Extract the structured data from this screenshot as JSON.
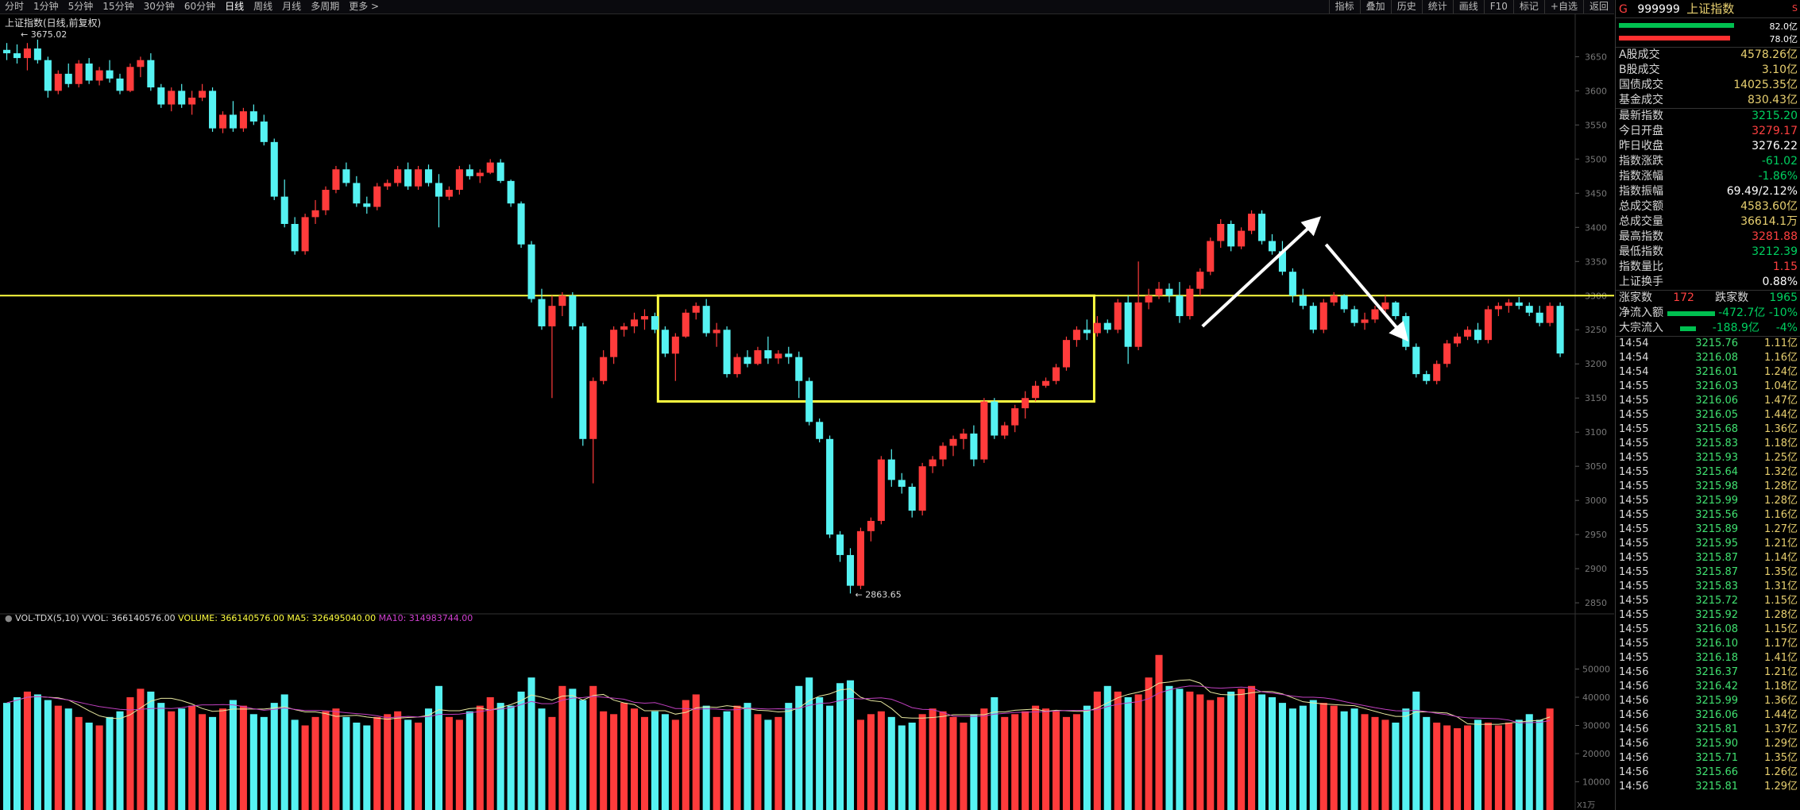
{
  "toolbar": {
    "periods": [
      "分时",
      "1分钟",
      "5分钟",
      "15分钟",
      "30分钟",
      "60分钟",
      "日线",
      "周线",
      "月线",
      "多周期",
      "更多 >"
    ],
    "active": "日线",
    "right_buttons": [
      "指标",
      "叠加",
      "历史",
      "统计",
      "画线",
      "F10",
      "标记",
      "+自选",
      "返回"
    ]
  },
  "chart": {
    "title": "上证指数(日线,前复权)",
    "max_label": "3675.02",
    "min_label": "2863.65",
    "y_ticks": [
      3650,
      3600,
      3550,
      3500,
      3450,
      3400,
      3350,
      3300,
      3250,
      3200,
      3150,
      3100,
      3050,
      3000,
      2950,
      2900,
      2850
    ],
    "vol_ticks": [
      "50000",
      "40000",
      "30000",
      "20000",
      "10000"
    ],
    "vol_unit": "X1万",
    "resistance_level": 3300,
    "box": {
      "from_bar": 64,
      "to_bar": 105,
      "upper": 3300,
      "lower": 3145
    },
    "colors": {
      "up": "#ff3b3b",
      "down": "#55f2f2",
      "ma5": "#e8e8a0",
      "ma10": "#c040c0",
      "box": "#ffff40"
    },
    "candles": [
      [
        3660,
        3670,
        3645,
        3655
      ],
      [
        3655,
        3668,
        3640,
        3648
      ],
      [
        3648,
        3670,
        3630,
        3662
      ],
      [
        3662,
        3675.02,
        3640,
        3645
      ],
      [
        3645,
        3650,
        3590,
        3600
      ],
      [
        3600,
        3630,
        3595,
        3625
      ],
      [
        3625,
        3640,
        3605,
        3610
      ],
      [
        3610,
        3645,
        3605,
        3640
      ],
      [
        3640,
        3648,
        3610,
        3615
      ],
      [
        3615,
        3635,
        3608,
        3630
      ],
      [
        3630,
        3645,
        3612,
        3618
      ],
      [
        3618,
        3625,
        3595,
        3600
      ],
      [
        3600,
        3640,
        3598,
        3635
      ],
      [
        3635,
        3650,
        3620,
        3645
      ],
      [
        3645,
        3655,
        3600,
        3605
      ],
      [
        3605,
        3610,
        3575,
        3580
      ],
      [
        3580,
        3605,
        3570,
        3600
      ],
      [
        3600,
        3610,
        3575,
        3580
      ],
      [
        3580,
        3600,
        3565,
        3590
      ],
      [
        3590,
        3610,
        3585,
        3600
      ],
      [
        3600,
        3605,
        3540,
        3545
      ],
      [
        3545,
        3570,
        3538,
        3565
      ],
      [
        3565,
        3585,
        3540,
        3545
      ],
      [
        3545,
        3575,
        3540,
        3570
      ],
      [
        3570,
        3580,
        3550,
        3555
      ],
      [
        3555,
        3565,
        3520,
        3525
      ],
      [
        3525,
        3530,
        3440,
        3445
      ],
      [
        3445,
        3470,
        3400,
        3405
      ],
      [
        3405,
        3415,
        3360,
        3365
      ],
      [
        3365,
        3420,
        3360,
        3415
      ],
      [
        3415,
        3440,
        3405,
        3425
      ],
      [
        3425,
        3460,
        3418,
        3455
      ],
      [
        3455,
        3490,
        3450,
        3485
      ],
      [
        3485,
        3495,
        3460,
        3465
      ],
      [
        3465,
        3475,
        3430,
        3435
      ],
      [
        3435,
        3445,
        3420,
        3430
      ],
      [
        3430,
        3465,
        3425,
        3460
      ],
      [
        3460,
        3470,
        3455,
        3465
      ],
      [
        3465,
        3490,
        3460,
        3485
      ],
      [
        3485,
        3495,
        3455,
        3460
      ],
      [
        3460,
        3490,
        3455,
        3485
      ],
      [
        3485,
        3492,
        3460,
        3465
      ],
      [
        3465,
        3478,
        3400,
        3445
      ],
      [
        3445,
        3460,
        3440,
        3455
      ],
      [
        3455,
        3490,
        3448,
        3485
      ],
      [
        3485,
        3492,
        3470,
        3475
      ],
      [
        3475,
        3485,
        3465,
        3480
      ],
      [
        3480,
        3500,
        3478,
        3495
      ],
      [
        3495,
        3500,
        3465,
        3468
      ],
      [
        3468,
        3470,
        3430,
        3435
      ],
      [
        3435,
        3438,
        3370,
        3375
      ],
      [
        3375,
        3380,
        3290,
        3295
      ],
      [
        3295,
        3310,
        3250,
        3255
      ],
      [
        3255,
        3300,
        3150,
        3285
      ],
      [
        3285,
        3305,
        3270,
        3300
      ],
      [
        3300,
        3305,
        3250,
        3255
      ],
      [
        3255,
        3260,
        3080,
        3090
      ],
      [
        3090,
        3180,
        3025,
        3175
      ],
      [
        3175,
        3220,
        3170,
        3210
      ],
      [
        3210,
        3255,
        3200,
        3250
      ],
      [
        3250,
        3260,
        3240,
        3255
      ],
      [
        3255,
        3275,
        3245,
        3265
      ],
      [
        3265,
        3280,
        3250,
        3270
      ],
      [
        3270,
        3275,
        3245,
        3250
      ],
      [
        3250,
        3255,
        3210,
        3215
      ],
      [
        3215,
        3245,
        3175,
        3240
      ],
      [
        3240,
        3280,
        3238,
        3275
      ],
      [
        3275,
        3290,
        3265,
        3285
      ],
      [
        3285,
        3295,
        3240,
        3245
      ],
      [
        3245,
        3260,
        3225,
        3250
      ],
      [
        3250,
        3255,
        3180,
        3185
      ],
      [
        3185,
        3215,
        3180,
        3210
      ],
      [
        3210,
        3220,
        3195,
        3200
      ],
      [
        3200,
        3225,
        3198,
        3220
      ],
      [
        3220,
        3240,
        3200,
        3208
      ],
      [
        3208,
        3220,
        3200,
        3215
      ],
      [
        3215,
        3225,
        3200,
        3210
      ],
      [
        3210,
        3218,
        3150,
        3175
      ],
      [
        3175,
        3180,
        3110,
        3115
      ],
      [
        3115,
        3120,
        3085,
        3090
      ],
      [
        3090,
        3095,
        2945,
        2950
      ],
      [
        2950,
        2955,
        2910,
        2920
      ],
      [
        2920,
        2930,
        2863.65,
        2875
      ],
      [
        2875,
        2960,
        2870,
        2955
      ],
      [
        2955,
        2975,
        2940,
        2970
      ],
      [
        2970,
        3065,
        2965,
        3060
      ],
      [
        3060,
        3075,
        3020,
        3030
      ],
      [
        3030,
        3040,
        3010,
        3020
      ],
      [
        3020,
        3025,
        2975,
        2985
      ],
      [
        2985,
        3055,
        2978,
        3050
      ],
      [
        3050,
        3065,
        3040,
        3060
      ],
      [
        3060,
        3085,
        3050,
        3080
      ],
      [
        3080,
        3095,
        3065,
        3090
      ],
      [
        3090,
        3105,
        3075,
        3098
      ],
      [
        3098,
        3110,
        3050,
        3060
      ],
      [
        3060,
        3150,
        3055,
        3145
      ],
      [
        3145,
        3150,
        3090,
        3095
      ],
      [
        3095,
        3115,
        3090,
        3110
      ],
      [
        3110,
        3140,
        3100,
        3135
      ],
      [
        3135,
        3160,
        3120,
        3150
      ],
      [
        3150,
        3175,
        3145,
        3168
      ],
      [
        3168,
        3180,
        3165,
        3175
      ],
      [
        3175,
        3200,
        3170,
        3195
      ],
      [
        3195,
        3240,
        3190,
        3235
      ],
      [
        3235,
        3255,
        3225,
        3250
      ],
      [
        3250,
        3265,
        3235,
        3245
      ],
      [
        3245,
        3270,
        3240,
        3260
      ],
      [
        3260,
        3265,
        3245,
        3250
      ],
      [
        3250,
        3295,
        3245,
        3290
      ],
      [
        3290,
        3300,
        3200,
        3225
      ],
      [
        3225,
        3350,
        3220,
        3290
      ],
      [
        3290,
        3310,
        3280,
        3300
      ],
      [
        3300,
        3320,
        3295,
        3310
      ],
      [
        3310,
        3318,
        3290,
        3300
      ],
      [
        3300,
        3320,
        3260,
        3270
      ],
      [
        3270,
        3315,
        3265,
        3310
      ],
      [
        3310,
        3340,
        3300,
        3335
      ],
      [
        3335,
        3385,
        3330,
        3380
      ],
      [
        3380,
        3412,
        3370,
        3405
      ],
      [
        3405,
        3410,
        3365,
        3372
      ],
      [
        3372,
        3400,
        3368,
        3395
      ],
      [
        3395,
        3425,
        3390,
        3420
      ],
      [
        3420,
        3425,
        3375,
        3380
      ],
      [
        3380,
        3390,
        3360,
        3365
      ],
      [
        3365,
        3380,
        3330,
        3335
      ],
      [
        3335,
        3340,
        3290,
        3300
      ],
      [
        3300,
        3310,
        3280,
        3285
      ],
      [
        3285,
        3290,
        3245,
        3250
      ],
      [
        3250,
        3295,
        3245,
        3290
      ],
      [
        3290,
        3305,
        3285,
        3300
      ],
      [
        3300,
        3302,
        3275,
        3280
      ],
      [
        3280,
        3285,
        3255,
        3260
      ],
      [
        3260,
        3275,
        3250,
        3265
      ],
      [
        3265,
        3285,
        3260,
        3280
      ],
      [
        3280,
        3300,
        3275,
        3290
      ],
      [
        3290,
        3292,
        3265,
        3270
      ],
      [
        3270,
        3275,
        3220,
        3225
      ],
      [
        3225,
        3230,
        3180,
        3185
      ],
      [
        3185,
        3190,
        3170,
        3175
      ],
      [
        3175,
        3205,
        3170,
        3200
      ],
      [
        3200,
        3235,
        3195,
        3230
      ],
      [
        3230,
        3245,
        3225,
        3240
      ],
      [
        3240,
        3255,
        3235,
        3250
      ],
      [
        3250,
        3260,
        3230,
        3235
      ],
      [
        3235,
        3285,
        3230,
        3280
      ],
      [
        3280,
        3290,
        3270,
        3285
      ],
      [
        3285,
        3295,
        3275,
        3290
      ],
      [
        3290,
        3298,
        3280,
        3285
      ],
      [
        3285,
        3290,
        3270,
        3275
      ],
      [
        3275,
        3285,
        3255,
        3260
      ],
      [
        3260,
        3290,
        3255,
        3285
      ],
      [
        3285,
        3290,
        3210,
        3215.2
      ]
    ],
    "volumes": [
      38,
      40,
      42,
      41,
      39,
      37,
      36,
      33,
      31,
      30,
      33,
      35,
      40,
      43,
      42,
      38,
      35,
      36,
      37,
      34,
      33,
      36,
      39,
      37,
      34,
      33,
      38,
      41,
      32,
      30,
      33,
      35,
      36,
      33,
      31,
      30,
      33,
      34,
      35,
      32,
      31,
      36,
      44,
      33,
      32,
      35,
      37,
      40,
      38,
      37,
      42,
      47,
      36,
      33,
      44,
      43,
      39,
      44,
      35,
      34,
      38,
      36,
      33,
      35,
      34,
      32,
      39,
      41,
      37,
      33,
      35,
      37,
      38,
      34,
      32,
      33,
      38,
      44,
      47,
      40,
      37,
      45,
      46,
      32,
      34,
      35,
      33,
      30,
      31,
      34,
      36,
      35,
      33,
      31,
      34,
      36,
      40,
      33,
      34,
      35,
      37,
      36,
      35,
      33,
      34,
      37,
      42,
      44,
      42,
      40,
      41,
      47,
      55,
      44,
      43,
      42,
      41,
      39,
      40,
      42,
      43,
      44,
      41,
      40,
      38,
      36,
      37,
      39,
      38,
      37,
      35,
      36,
      34,
      33,
      32,
      31,
      36,
      42,
      33,
      31,
      30,
      29,
      30,
      32,
      31,
      30,
      31,
      32,
      34,
      32,
      36
    ]
  },
  "indicator": {
    "name": "VOL-TDX(5,10)",
    "vvol": "VVOL: 366140576.00",
    "volume": "VOLUME: 366140576.00",
    "ma5": "MA5: 326495040.00",
    "ma10": "MA10: 314983744.00"
  },
  "panel": {
    "code": "999999",
    "name": "上证指数",
    "g": "G",
    "s": "S",
    "bar1": "82.0亿",
    "bar2": "78.0亿",
    "summary": [
      {
        "label": "A股成交",
        "value": "4578.26亿",
        "cls": "yel"
      },
      {
        "label": "B股成交",
        "value": "3.10亿",
        "cls": "yel"
      },
      {
        "label": "国债成交",
        "value": "14025.35亿",
        "cls": "yel"
      },
      {
        "label": "基金成交",
        "value": "830.43亿",
        "cls": "yel"
      }
    ],
    "quotes": [
      {
        "label": "最新指数",
        "value": "3215.20",
        "cls": "green"
      },
      {
        "label": "今日开盘",
        "value": "3279.17",
        "cls": "red"
      },
      {
        "label": "昨日收盘",
        "value": "3276.22",
        "cls": "white"
      },
      {
        "label": "指数涨跌",
        "value": "-61.02",
        "cls": "green"
      },
      {
        "label": "指数涨幅",
        "value": "-1.86%",
        "cls": "green"
      },
      {
        "label": "指数振幅",
        "value": "69.49/2.12%",
        "cls": "white"
      },
      {
        "label": "总成交额",
        "value": "4583.60亿",
        "cls": "yel"
      },
      {
        "label": "总成交量",
        "value": "36614.1万",
        "cls": "yel"
      },
      {
        "label": "最高指数",
        "value": "3281.88",
        "cls": "red"
      },
      {
        "label": "最低指数",
        "value": "3212.39",
        "cls": "green"
      },
      {
        "label": "指数量比",
        "value": "1.15",
        "cls": "red"
      },
      {
        "label": "上证换手",
        "value": "0.88%",
        "cls": "white"
      }
    ],
    "rise_label": "涨家数",
    "rise_count": "172",
    "fall_label": "跌家数",
    "fall_count": "1965",
    "net_inflow_label": "净流入额",
    "net_inflow_value": "-472.7亿",
    "net_inflow_pct": "-10%",
    "block_label": "大宗流入",
    "block_value": "-188.9亿",
    "block_pct": "-4%",
    "ticks": [
      [
        "14:54",
        "3215.76",
        "1.11亿"
      ],
      [
        "14:54",
        "3216.08",
        "1.16亿"
      ],
      [
        "14:54",
        "3216.01",
        "1.24亿"
      ],
      [
        "14:55",
        "3216.03",
        "1.04亿"
      ],
      [
        "14:55",
        "3216.06",
        "1.47亿"
      ],
      [
        "14:55",
        "3216.05",
        "1.44亿"
      ],
      [
        "14:55",
        "3215.68",
        "1.36亿"
      ],
      [
        "14:55",
        "3215.83",
        "1.18亿"
      ],
      [
        "14:55",
        "3215.93",
        "1.25亿"
      ],
      [
        "14:55",
        "3215.64",
        "1.32亿"
      ],
      [
        "14:55",
        "3215.98",
        "1.28亿"
      ],
      [
        "14:55",
        "3215.99",
        "1.28亿"
      ],
      [
        "14:55",
        "3215.56",
        "1.16亿"
      ],
      [
        "14:55",
        "3215.89",
        "1.27亿"
      ],
      [
        "14:55",
        "3215.95",
        "1.21亿"
      ],
      [
        "14:55",
        "3215.87",
        "1.14亿"
      ],
      [
        "14:55",
        "3215.87",
        "1.35亿"
      ],
      [
        "14:55",
        "3215.83",
        "1.31亿"
      ],
      [
        "14:55",
        "3215.72",
        "1.15亿"
      ],
      [
        "14:55",
        "3215.92",
        "1.28亿"
      ],
      [
        "14:55",
        "3216.08",
        "1.15亿"
      ],
      [
        "14:55",
        "3216.10",
        "1.17亿"
      ],
      [
        "14:55",
        "3216.18",
        "1.41亿"
      ],
      [
        "14:56",
        "3216.37",
        "1.21亿"
      ],
      [
        "14:56",
        "3216.42",
        "1.18亿"
      ],
      [
        "14:56",
        "3215.99",
        "1.36亿"
      ],
      [
        "14:56",
        "3216.06",
        "1.44亿"
      ],
      [
        "14:56",
        "3215.81",
        "1.37亿"
      ],
      [
        "14:56",
        "3215.90",
        "1.29亿"
      ],
      [
        "14:56",
        "3215.71",
        "1.35亿"
      ],
      [
        "14:56",
        "3215.66",
        "1.26亿"
      ],
      [
        "14:56",
        "3215.81",
        "1.29亿"
      ]
    ]
  }
}
